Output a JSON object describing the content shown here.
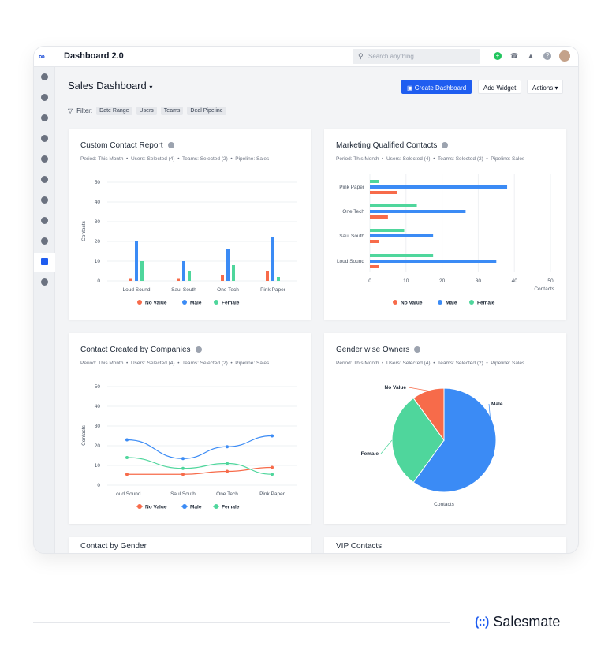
{
  "app": {
    "title": "Dashboard 2.0",
    "search_placeholder": "Search anything",
    "icons": [
      "plus-circle-icon",
      "phone-icon",
      "bell-icon",
      "help-icon",
      "avatar"
    ]
  },
  "sidebar": {
    "items": [
      "dashboard-icon",
      "contacts-icon",
      "companies-icon",
      "tasks-icon",
      "deals-icon",
      "products-icon",
      "chat-icon",
      "email-icon",
      "inbox-icon",
      "reports-icon",
      "more-icon"
    ],
    "active": "reports-icon"
  },
  "page": {
    "title": "Sales Dashboard",
    "create_label": "Create Dashboard",
    "add_widget_label": "Add Widget",
    "actions_label": "Actions",
    "filter_label": "Filter:",
    "filters": [
      "Date Range",
      "Users",
      "Teams",
      "Deal Pipeline"
    ]
  },
  "meta": {
    "period": "Period: This Month",
    "users": "Users: Selected (4)",
    "teams": "Teams: Selected (2)",
    "pipeline": "Pipeline: Sales"
  },
  "colors": {
    "no_value": "#f76b4a",
    "male": "#3b8bf5",
    "female": "#4fd69c",
    "accent": "#1f5df0"
  },
  "chart_data": [
    {
      "type": "bar",
      "title": "Custom Contact Report",
      "ylabel": "Contacts",
      "ylim": [
        0,
        50
      ],
      "yticks": [
        0,
        10,
        20,
        30,
        40,
        50
      ],
      "categories": [
        "Loud Sound",
        "Saul South",
        "One Tech",
        "Pink Paper"
      ],
      "series": [
        {
          "name": "No Value",
          "values": [
            1,
            1,
            3,
            5
          ]
        },
        {
          "name": "Male",
          "values": [
            20,
            10,
            16,
            22
          ]
        },
        {
          "name": "Female",
          "values": [
            10,
            5,
            8,
            2
          ]
        }
      ],
      "legend": "bottom"
    },
    {
      "type": "bar",
      "orientation": "horizontal",
      "title": "Marketing Qualified Contacts",
      "xlabel": "Contacts",
      "xlim": [
        0,
        50
      ],
      "xticks": [
        0,
        10,
        20,
        30,
        40,
        50
      ],
      "categories": [
        "Pink Paper",
        "One Tech",
        "Saul South",
        "Loud Sound"
      ],
      "series": [
        {
          "name": "Female",
          "values": [
            2.5,
            13,
            9.5,
            17.5
          ]
        },
        {
          "name": "Male",
          "values": [
            38,
            26.5,
            17.5,
            35
          ]
        },
        {
          "name": "No Value",
          "values": [
            7.5,
            5,
            2.5,
            2.5
          ]
        }
      ],
      "legend": "bottom"
    },
    {
      "type": "line",
      "title": "Contact Created by Companies",
      "ylabel": "Contacts",
      "ylim": [
        0,
        50
      ],
      "yticks": [
        0,
        10,
        20,
        30,
        40,
        50
      ],
      "categories": [
        "Loud Sound",
        "Saul South",
        "One Tech",
        "Pink Paper"
      ],
      "series": [
        {
          "name": "No Value",
          "values": [
            5.5,
            5.5,
            7,
            9
          ]
        },
        {
          "name": "Male",
          "values": [
            23,
            13.5,
            19.5,
            25
          ]
        },
        {
          "name": "Female",
          "values": [
            14,
            8.5,
            11,
            5.5
          ]
        }
      ],
      "legend": "bottom"
    },
    {
      "type": "pie",
      "title": "Gender wise Owners",
      "xlabel": "Contacts",
      "slices": [
        {
          "name": "Male",
          "value": 60
        },
        {
          "name": "Female",
          "value": 30
        },
        {
          "name": "No Value",
          "value": 10
        }
      ]
    }
  ],
  "more_cards": [
    "Contact by Gender",
    "VIP Contacts"
  ],
  "brand": {
    "name": "Salesmate"
  }
}
